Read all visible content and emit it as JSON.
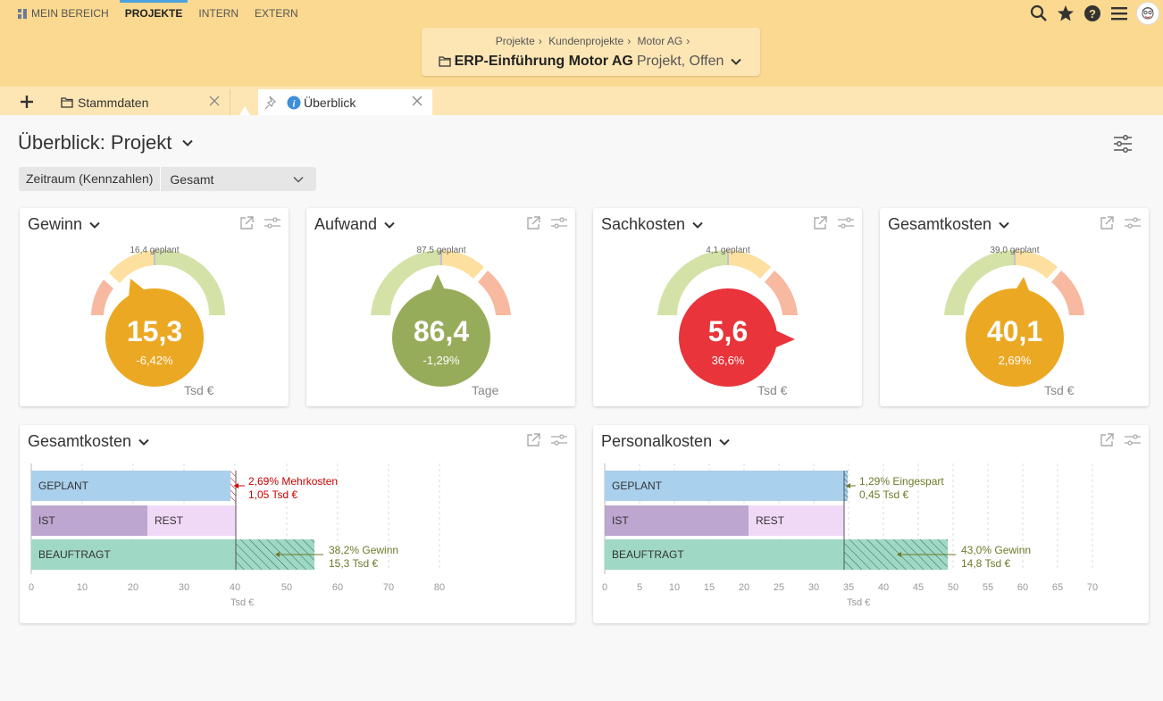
{
  "nav": {
    "items": [
      "MEIN BEREICH",
      "PROJEKTE",
      "INTERN",
      "EXTERN"
    ]
  },
  "breadcrumb": {
    "crumbs": [
      "Projekte",
      "Kundenprojekte",
      "Motor AG"
    ],
    "project_name": "ERP-Einführung Motor AG",
    "project_status": "Projekt, Offen"
  },
  "tabs": {
    "tab1": "Stammdaten",
    "tab2": "Überblick"
  },
  "page": {
    "title": "Überblick: Projekt"
  },
  "filter": {
    "label": "Zeitraum (Kennzahlen)",
    "value": "Gesamt"
  },
  "kpis": [
    {
      "title": "Gewinn",
      "planned": "16,4 geplant",
      "value": "15,3",
      "pct": "-6,42%",
      "unit": "Tsd €",
      "color": "#eba823"
    },
    {
      "title": "Aufwand",
      "planned": "87,5 geplant",
      "value": "86,4",
      "pct": "-1,29%",
      "unit": "Tage",
      "color": "#97ac5a"
    },
    {
      "title": "Sachkosten",
      "planned": "4,1 geplant",
      "value": "5,6",
      "pct": "36,6%",
      "unit": "Tsd €",
      "color": "#e8343a"
    },
    {
      "title": "Gesamtkosten",
      "planned": "39,0 geplant",
      "value": "40,1",
      "pct": "2,69%",
      "unit": "Tsd €",
      "color": "#eba823"
    }
  ],
  "charts": [
    {
      "title": "Gesamtkosten",
      "bars": {
        "geplant": "GEPLANT",
        "ist": "IST",
        "rest": "REST",
        "beauftragt": "BEAUFTRAGT"
      },
      "annot1": [
        "2,69% Mehrkosten",
        "1,05 Tsd €"
      ],
      "annot2": [
        "38,2% Gewinn",
        "15,3 Tsd €"
      ],
      "ticks": [
        "0",
        "10",
        "20",
        "30",
        "40",
        "50",
        "60",
        "70",
        "80"
      ],
      "axis": "Tsd €"
    },
    {
      "title": "Personalkosten",
      "bars": {
        "geplant": "GEPLANT",
        "ist": "IST",
        "rest": "REST",
        "beauftragt": "BEAUFTRAGT"
      },
      "annot1": [
        "1,29% Eingespart",
        "0,45 Tsd €"
      ],
      "annot2": [
        "43,0% Gewinn",
        "14,8 Tsd €"
      ],
      "ticks": [
        "0",
        "5",
        "10",
        "15",
        "20",
        "25",
        "30",
        "35",
        "40",
        "45",
        "50",
        "55",
        "60",
        "65",
        "70"
      ],
      "axis": "Tsd €"
    }
  ],
  "chart_data": [
    {
      "type": "bar",
      "title": "Gesamtkosten",
      "xlabel": "Tsd €",
      "xlim": [
        0,
        80
      ],
      "series": [
        {
          "name": "GEPLANT",
          "values": [
            39.0
          ]
        },
        {
          "name": "IST",
          "values": [
            22.6
          ]
        },
        {
          "name": "REST",
          "values": [
            17.5
          ]
        },
        {
          "name": "BEAUFTRAGT",
          "values": [
            55.4
          ]
        }
      ]
    },
    {
      "type": "bar",
      "title": "Personalkosten",
      "xlabel": "Tsd €",
      "xlim": [
        0,
        70
      ],
      "series": [
        {
          "name": "GEPLANT",
          "values": [
            35.0
          ]
        },
        {
          "name": "IST",
          "values": [
            21.0
          ]
        },
        {
          "name": "REST",
          "values": [
            13.6
          ]
        },
        {
          "name": "BEAUFTRAGT",
          "values": [
            49.4
          ]
        }
      ]
    }
  ]
}
